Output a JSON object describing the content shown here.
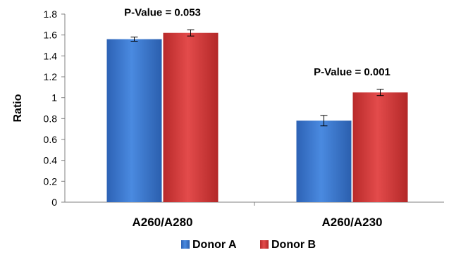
{
  "chart_data": {
    "type": "bar",
    "ylabel": "Ratio",
    "xlabel": "",
    "ylim": [
      0,
      1.8
    ],
    "ytick_step": 0.2,
    "ytick_labels": [
      "0",
      "0.2",
      "0.4",
      "0.6",
      "0.8",
      "1",
      "1.2",
      "1.4",
      "1.6",
      "1.8"
    ],
    "categories": [
      "A260/A280",
      "A260/A230"
    ],
    "series": [
      {
        "name": "Donor A",
        "color": "#3b78d0",
        "values": [
          1.56,
          0.78
        ],
        "errors": [
          0.02,
          0.05
        ]
      },
      {
        "name": "Donor B",
        "color": "#d63b3b",
        "values": [
          1.62,
          1.05
        ],
        "errors": [
          0.03,
          0.03
        ]
      }
    ],
    "annotations": [
      {
        "category": 0,
        "text": "P-Value = 0.053"
      },
      {
        "category": 1,
        "text": "P-Value = 0.001"
      }
    ],
    "grid": false,
    "legend_position": "bottom"
  }
}
